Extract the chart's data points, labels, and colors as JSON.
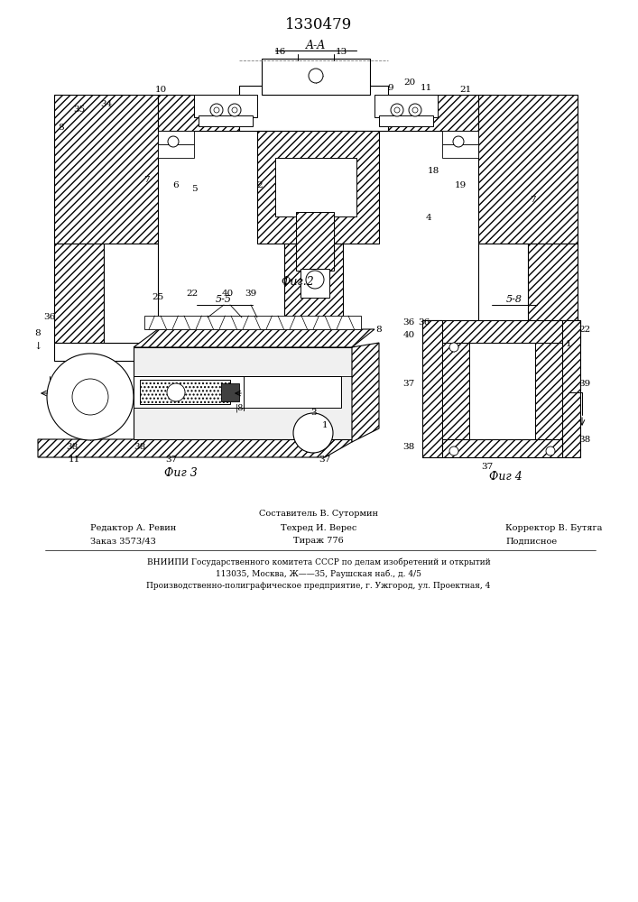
{
  "patent_number": "1330479",
  "background_color": "#ffffff",
  "fig2_label": "Фиг.2",
  "fig3_label": "Фиг 3",
  "fig4_label": "Фиг 4",
  "section_aa": "A-A",
  "section_bb": "5-5",
  "section_bv": "5-8",
  "footer_composer": "Составитель В. Сутормин",
  "footer_editor": "Редактор А. Ревин",
  "footer_techred": "Техред И. Верес",
  "footer_corrector": "Корректор В. Бутяга",
  "footer_order": "Заказ 3573/43",
  "footer_print": "Тираж 776",
  "footer_signed": "Подписное",
  "footer_vniipи": "ВНИИПИ Государственного комитета СССР по делам изобретений и открытий",
  "footer_addr1": "113035, Москва, Ж——35, Раушская наб., д. 4/5",
  "footer_addr2": "Производственно-полиграфическое предприятие, г. Ужгород, ул. Проектная, 4"
}
